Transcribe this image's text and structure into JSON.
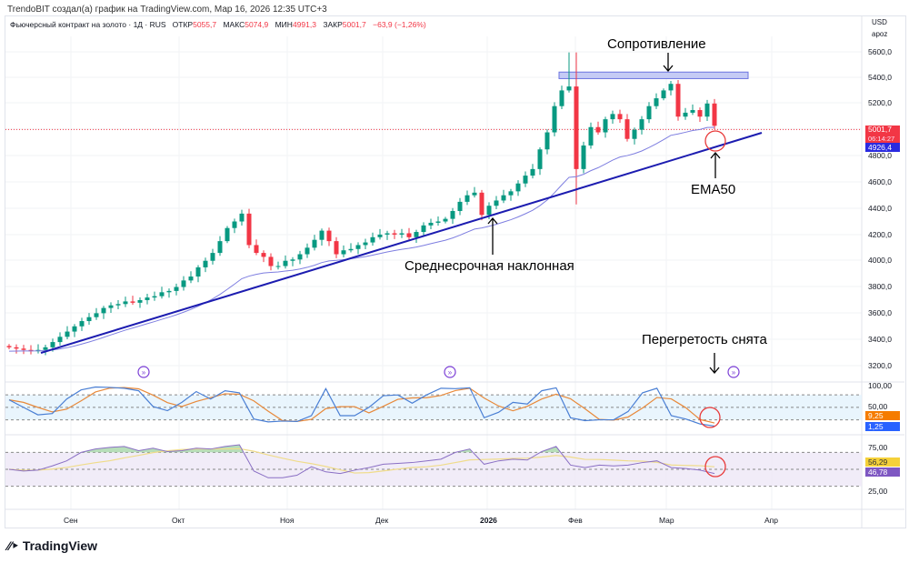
{
  "credit": "TrendoBIT создал(а) график на TradingView.com, Мар 16, 2026 12:35 UTC+3",
  "legend": {
    "symbol": "Фьючерсный контракт на золото · 1Д · RUS",
    "open_label": "ОТКР",
    "open": "5055,7",
    "high_label": "МАКС",
    "high": "5074,9",
    "low_label": "МИН",
    "low": "4991,3",
    "close_label": "ЗАКР",
    "close": "5001,7",
    "change": "−63,9 (−1,26%)"
  },
  "currency": {
    "code": "USD",
    "unit": "apoz"
  },
  "price_axis": [
    "5600,0",
    "5400,0",
    "5200,0",
    "4800,0",
    "4600,0",
    "4400,0",
    "4200,0",
    "4000,0",
    "3800,0",
    "3600,0",
    "3400,0",
    "3200,0"
  ],
  "price_tags": {
    "last": "5001,7",
    "countdown": "06:14:27",
    "ema": "4926,4"
  },
  "stoch_axis": [
    "100,00",
    "50,00"
  ],
  "stoch_tags": [
    "9,25",
    "1,25"
  ],
  "rsi_axis": [
    "75,00",
    "25,00"
  ],
  "rsi_tags": [
    "56,29",
    "46,78"
  ],
  "time_axis": [
    "Сен",
    "Окт",
    "Ноя",
    "Дек",
    "2026",
    "Фев",
    "Мар",
    "Апр"
  ],
  "annotations": {
    "resistance": "Сопротивление",
    "ema": "EMA50",
    "trendline": "Среднесрочная наклонная",
    "overheat": "Перегретость снята"
  },
  "logo": "TradingView",
  "colors": {
    "up": "#089981",
    "down": "#f23645",
    "ema": "#7e7ee0",
    "trend": "#1c1cb0",
    "stoch_k": "#4a7fd4",
    "stoch_d": "#e8893a",
    "rsi": "#8a6fc4",
    "rsi_ma": "#f0dc8a",
    "marker": "#e83a3a"
  },
  "chart_data": {
    "type": "candlestick",
    "ylim": [
      3200,
      5600
    ],
    "closes": [
      3340,
      3330,
      3320,
      3310,
      3320,
      3340,
      3380,
      3420,
      3460,
      3500,
      3540,
      3570,
      3600,
      3640,
      3660,
      3670,
      3690,
      3680,
      3700,
      3720,
      3730,
      3760,
      3770,
      3800,
      3850,
      3880,
      3950,
      4000,
      4060,
      4150,
      4250,
      4300,
      4360,
      4120,
      4060,
      4030,
      3960,
      3960,
      4000,
      4010,
      4050,
      4100,
      4160,
      4230,
      4150,
      4050,
      4080,
      4090,
      4120,
      4140,
      4180,
      4200,
      4210,
      4200,
      4210,
      4180,
      4220,
      4270,
      4290,
      4300,
      4320,
      4380,
      4450,
      4500,
      4520,
      4350,
      4420,
      4460,
      4500,
      4530,
      4590,
      4650,
      4700,
      4850,
      4980,
      5180,
      5300,
      5330,
      4700,
      4880,
      5020,
      4980,
      5080,
      5120,
      5080,
      4930,
      5000,
      5080,
      5180,
      5240,
      5300,
      5350,
      5100,
      5130,
      5150,
      5100,
      5200,
      5030
    ],
    "resistance_zone": [
      5390,
      5440
    ],
    "stoch_rsi_k": [
      68,
      50,
      32,
      35,
      70,
      92,
      99,
      98,
      96,
      90,
      52,
      42,
      62,
      88,
      70,
      90,
      85,
      22,
      15,
      17,
      16,
      30,
      95,
      30,
      30,
      50,
      78,
      80,
      60,
      80,
      96,
      95,
      97,
      25,
      38,
      62,
      58,
      90,
      97,
      25,
      18,
      20,
      20,
      40,
      85,
      96,
      30,
      22,
      10,
      5
    ],
    "stoch_levels": [
      80,
      50,
      20
    ],
    "rsi": [
      50,
      48,
      49,
      54,
      60,
      70,
      74,
      76,
      77,
      72,
      75,
      71,
      72,
      75,
      74,
      77,
      79,
      48,
      40,
      40,
      43,
      53,
      47,
      45,
      49,
      52,
      56,
      57,
      58,
      60,
      62,
      70,
      74,
      56,
      60,
      62,
      61,
      71,
      77,
      55,
      52,
      55,
      54,
      55,
      58,
      60,
      52,
      51,
      49,
      45
    ],
    "rsi_levels": [
      70,
      50,
      30
    ]
  }
}
